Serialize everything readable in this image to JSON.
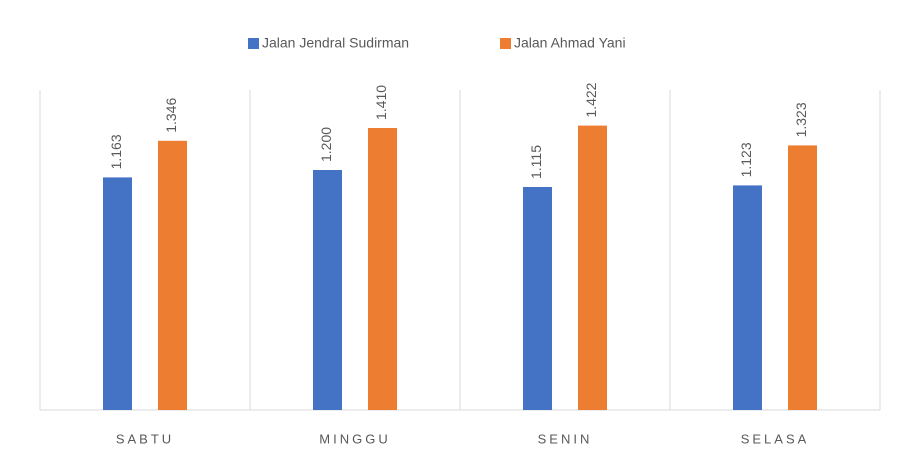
{
  "chart_data": {
    "type": "bar",
    "categories": [
      "SABTU",
      "MINGGU",
      "SENIN",
      "SELASA"
    ],
    "series": [
      {
        "name": "Jalan Jendral Sudirman",
        "color": "#4472c4",
        "values": [
          1.163,
          1.2,
          1.115,
          1.123
        ]
      },
      {
        "name": "Jalan Ahmad Yani",
        "color": "#ed7d31",
        "values": [
          1.346,
          1.41,
          1.422,
          1.323
        ]
      }
    ],
    "value_labels": [
      [
        "1.163",
        "1.200",
        "1.115",
        "1.123"
      ],
      [
        "1.346",
        "1.410",
        "1.422",
        "1.323"
      ]
    ],
    "ylim": [
      0,
      1.6
    ],
    "legend": "top"
  }
}
